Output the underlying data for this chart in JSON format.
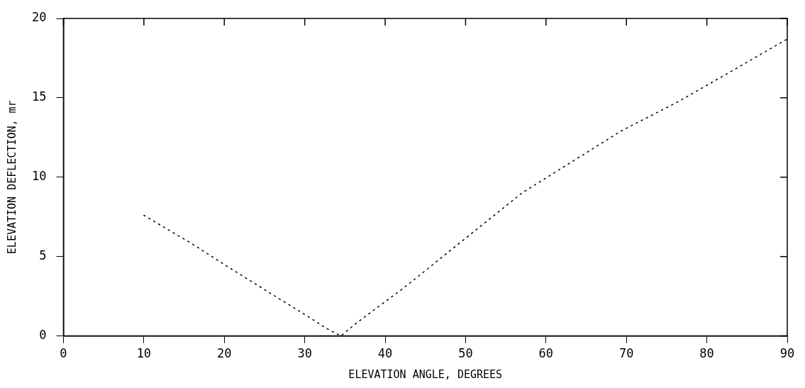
{
  "chart_data": {
    "type": "line",
    "xlabel": "ELEVATION ANGLE, DEGREES",
    "ylabel": "ELEVATION DEFLECTION, mr",
    "x": [
      10,
      16,
      20,
      26,
      30.5,
      32.6,
      34.5,
      36.4,
      42.5,
      57,
      69.3,
      76.6,
      90
    ],
    "series": [
      {
        "color": "#000000",
        "values": [
          7.6,
          5.8,
          4.5,
          2.6,
          1.2,
          0.5,
          0,
          0.8,
          3.1,
          9.0,
          12.9,
          14.8,
          18.7
        ]
      }
    ],
    "xlim": [
      0,
      90
    ],
    "xticks": [
      0,
      10,
      20,
      30,
      40,
      50,
      60,
      70,
      80,
      90
    ],
    "ylim": [
      0,
      20
    ],
    "yticks": [
      0,
      5,
      10,
      15,
      20
    ],
    "grid": false,
    "legend": false,
    "marker": "none",
    "line_style": "dotted"
  }
}
